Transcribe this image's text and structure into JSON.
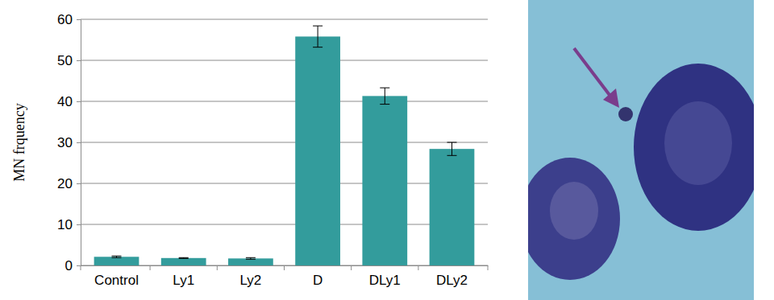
{
  "chart_data": {
    "type": "bar",
    "y_label": "MN frquency",
    "categories": [
      "Control",
      "Ly1",
      "Ly2",
      "D",
      "DLy1",
      "DLy2"
    ],
    "values": [
      2.1,
      1.8,
      1.7,
      55.8,
      41.3,
      28.4
    ],
    "errors": [
      0.2,
      0.1,
      0.2,
      2.6,
      2.0,
      1.6
    ],
    "color": "#339c9c",
    "ylim": [
      0,
      60
    ],
    "yticks": [
      0,
      10,
      20,
      30,
      40,
      50,
      60
    ],
    "grid": true
  }
}
